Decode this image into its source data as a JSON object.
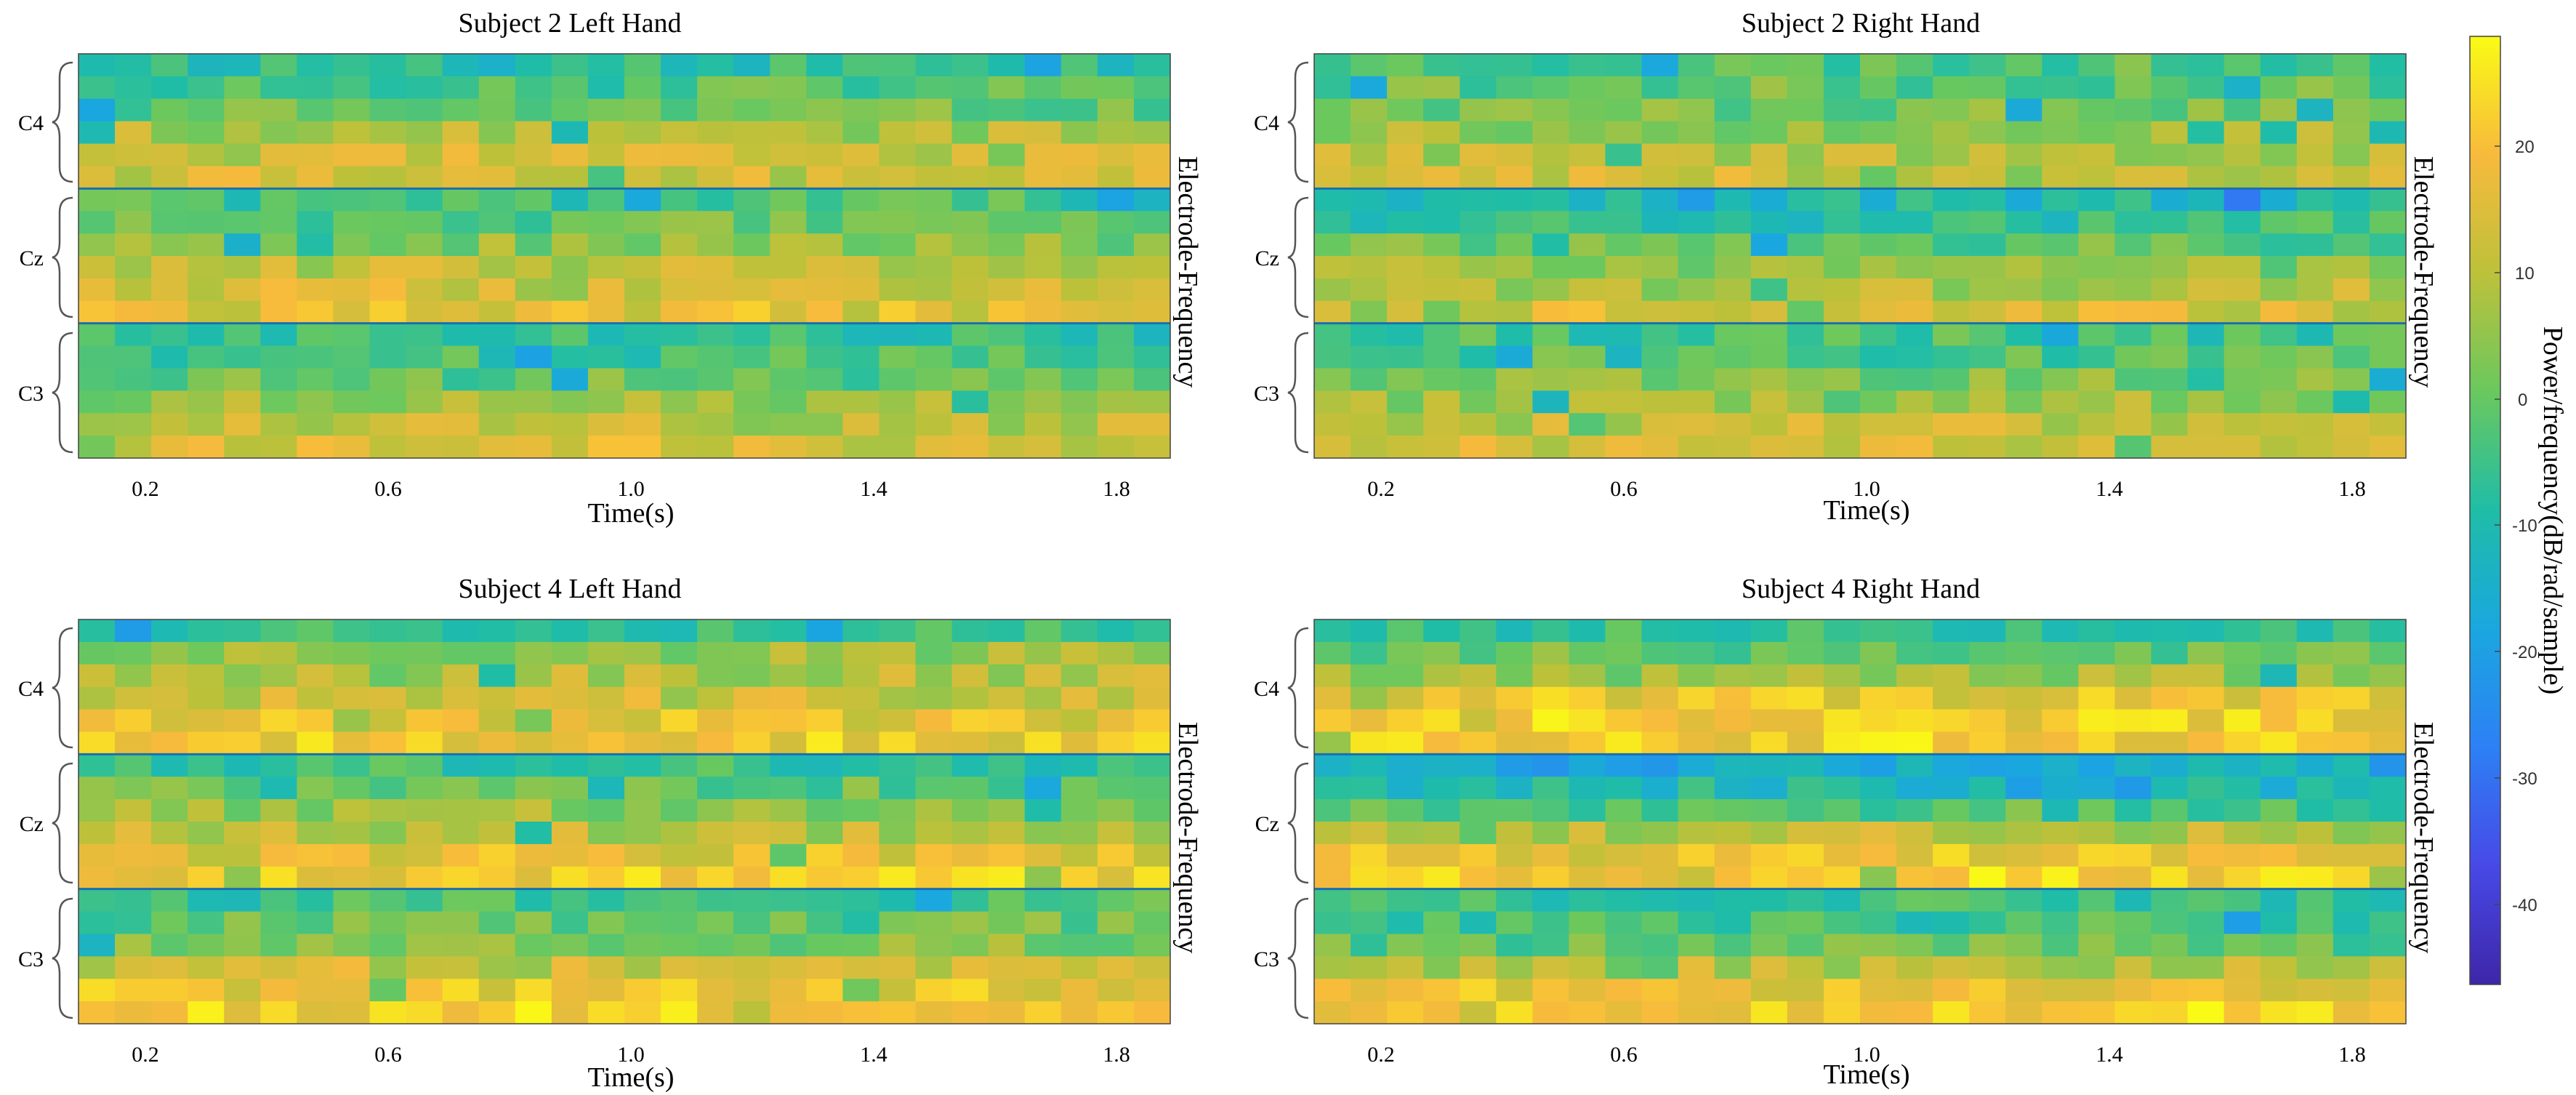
{
  "chart_data": {
    "type": "heatmap",
    "figure": "Spectrogram heatmaps of EEG power per electrode and frequency over time",
    "colormap": "parula",
    "colorbar": {
      "label": "Power/frequency(dB/rad/sample)",
      "range": [
        -46,
        29
      ],
      "ticks": [
        -40,
        -30,
        -20,
        -10,
        0,
        10,
        20
      ],
      "tick_labels": [
        "-40",
        "-30",
        "-20",
        "-10",
        "0",
        "10",
        "20"
      ]
    },
    "common_axes": {
      "xlabel": "Time(s)",
      "ylabel": "Electrode-Frequency",
      "xlim": [
        0.09,
        1.89
      ],
      "xticks": [
        0.2,
        0.6,
        1.0,
        1.4,
        1.8
      ],
      "xtick_labels": [
        "0.2",
        "0.6",
        "1.0",
        "1.4",
        "1.8"
      ],
      "electrodes": [
        "C4",
        "Cz",
        "C3"
      ],
      "frequency_bins_per_electrode": 6,
      "time_bins": 30
    },
    "panels": [
      {
        "title": "Subject 2 Left Hand",
        "subject": 2,
        "hand": "Left",
        "mean_band_level_db": [
          [
            -6,
            -2,
            0,
            8,
            12,
            14
          ],
          [
            -4,
            0,
            4,
            10,
            13,
            16
          ],
          [
            -6,
            -4,
            0,
            6,
            10,
            14
          ]
        ],
        "seed": 11
      },
      {
        "title": "Subject 2 Right Hand",
        "subject": 2,
        "hand": "Right",
        "mean_band_level_db": [
          [
            -2,
            0,
            2,
            6,
            10,
            13
          ],
          [
            -10,
            -6,
            0,
            5,
            9,
            14
          ],
          [
            -4,
            -2,
            2,
            6,
            11,
            14
          ]
        ],
        "seed": 23
      },
      {
        "title": "Subject 4 Left Hand",
        "subject": 4,
        "hand": "Left",
        "mean_band_level_db": [
          [
            -4,
            6,
            10,
            12,
            17,
            20
          ],
          [
            -6,
            0,
            6,
            10,
            16,
            20
          ],
          [
            -4,
            0,
            4,
            12,
            18,
            22
          ]
        ],
        "seed": 37
      },
      {
        "title": "Subject 4 Right Hand",
        "subject": 4,
        "hand": "Right",
        "mean_band_level_db": [
          [
            -4,
            0,
            6,
            18,
            21,
            22
          ],
          [
            -16,
            -10,
            -2,
            10,
            18,
            22
          ],
          [
            -6,
            -4,
            0,
            10,
            18,
            22
          ]
        ],
        "seed": 53
      }
    ]
  },
  "colors": {
    "background": "#ffffff",
    "axis": "#000000",
    "brace": "#555555"
  }
}
